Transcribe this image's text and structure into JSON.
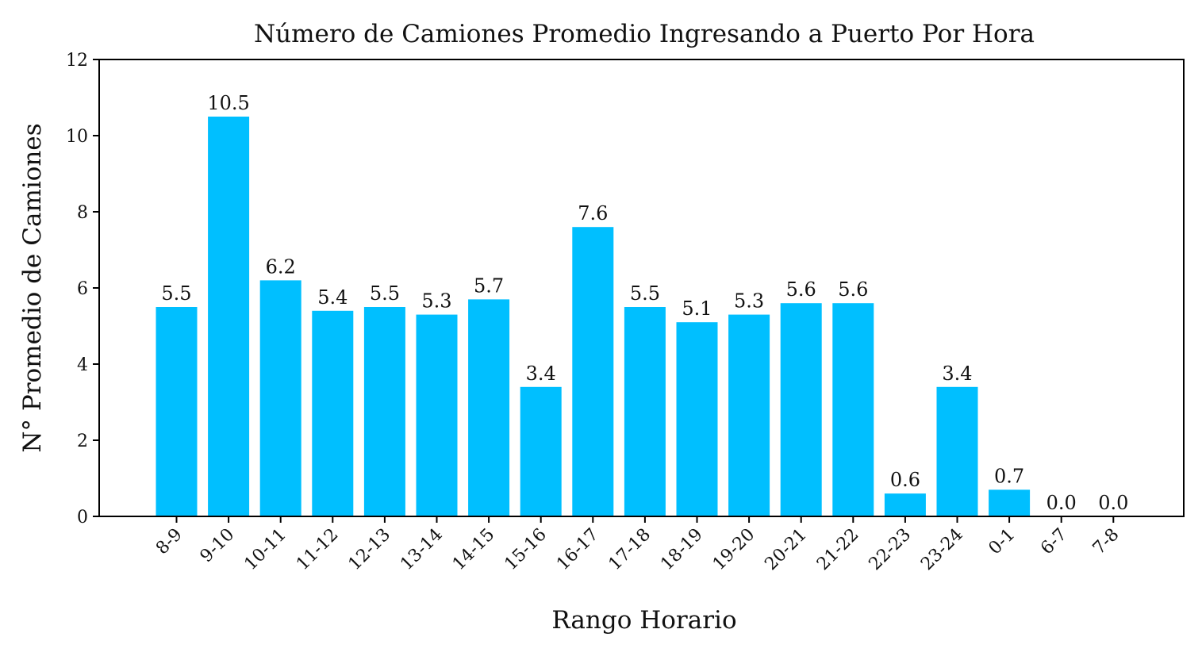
{
  "chart_data": {
    "type": "bar",
    "title": "Número de Camiones Promedio Ingresando a Puerto Por Hora",
    "xlabel": "Rango Horario",
    "ylabel": "N° Promedio de Camiones",
    "categories": [
      "8-9",
      "9-10",
      "10-11",
      "11-12",
      "12-13",
      "13-14",
      "14-15",
      "15-16",
      "16-17",
      "17-18",
      "18-19",
      "19-20",
      "20-21",
      "21-22",
      "22-23",
      "23-24",
      "0-1",
      "6-7",
      "7-8"
    ],
    "values": [
      5.5,
      10.5,
      6.2,
      5.4,
      5.5,
      5.3,
      5.7,
      3.4,
      7.6,
      5.5,
      5.1,
      5.3,
      5.6,
      5.6,
      0.6,
      3.4,
      0.7,
      0.0,
      0.0
    ],
    "value_labels": [
      "5.5",
      "10.5",
      "6.2",
      "5.4",
      "5.5",
      "5.3",
      "5.7",
      "3.4",
      "7.6",
      "5.5",
      "5.1",
      "5.3",
      "5.6",
      "5.6",
      "0.6",
      "3.4",
      "0.7",
      "0.0",
      "0.0"
    ],
    "ylim": [
      0,
      12
    ],
    "yticks": [
      0,
      2,
      4,
      6,
      8,
      10,
      12
    ],
    "grid": false,
    "bar_color": "#00BFFF",
    "axis_color": "#000000"
  }
}
